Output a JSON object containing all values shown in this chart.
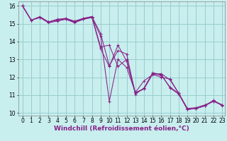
{
  "background_color": "#c8eeee",
  "grid_color": "#99cccc",
  "line_color": "#882288",
  "xlabel": "Windchill (Refroidissement éolien,°C)",
  "xlabel_fontsize": 6.5,
  "tick_fontsize": 5.5,
  "xlim": [
    -0.5,
    23.3
  ],
  "ylim": [
    9.85,
    16.25
  ],
  "yticks": [
    10,
    11,
    12,
    13,
    14,
    15,
    16
  ],
  "xticks": [
    0,
    1,
    2,
    3,
    4,
    5,
    6,
    7,
    8,
    9,
    10,
    11,
    12,
    13,
    14,
    15,
    16,
    17,
    18,
    19,
    20,
    21,
    22,
    23
  ],
  "series": [
    [
      16.0,
      15.2,
      15.35,
      15.1,
      15.2,
      15.25,
      15.1,
      15.25,
      15.35,
      13.6,
      12.6,
      13.8,
      12.9,
      11.1,
      11.35,
      12.2,
      12.2,
      11.85,
      11.1,
      10.2,
      10.25,
      10.4,
      10.7,
      10.4
    ],
    [
      16.0,
      15.2,
      15.4,
      15.1,
      15.25,
      15.3,
      15.15,
      15.3,
      15.4,
      14.45,
      12.65,
      13.5,
      13.3,
      11.05,
      11.4,
      12.25,
      12.15,
      11.4,
      11.05,
      10.2,
      10.25,
      10.4,
      10.7,
      10.45
    ],
    [
      16.0,
      15.2,
      15.35,
      15.05,
      15.15,
      15.25,
      15.05,
      15.25,
      15.35,
      14.3,
      10.65,
      13.0,
      12.55,
      11.15,
      11.8,
      12.15,
      12.0,
      11.9,
      11.1,
      10.25,
      10.3,
      10.45,
      10.65,
      10.45
    ],
    [
      16.0,
      15.2,
      15.35,
      15.1,
      15.2,
      15.3,
      15.1,
      15.3,
      15.4,
      13.7,
      13.8,
      12.6,
      13.0,
      11.15,
      11.35,
      12.2,
      12.1,
      11.45,
      11.1,
      10.2,
      10.25,
      10.4,
      10.65,
      10.45
    ]
  ]
}
